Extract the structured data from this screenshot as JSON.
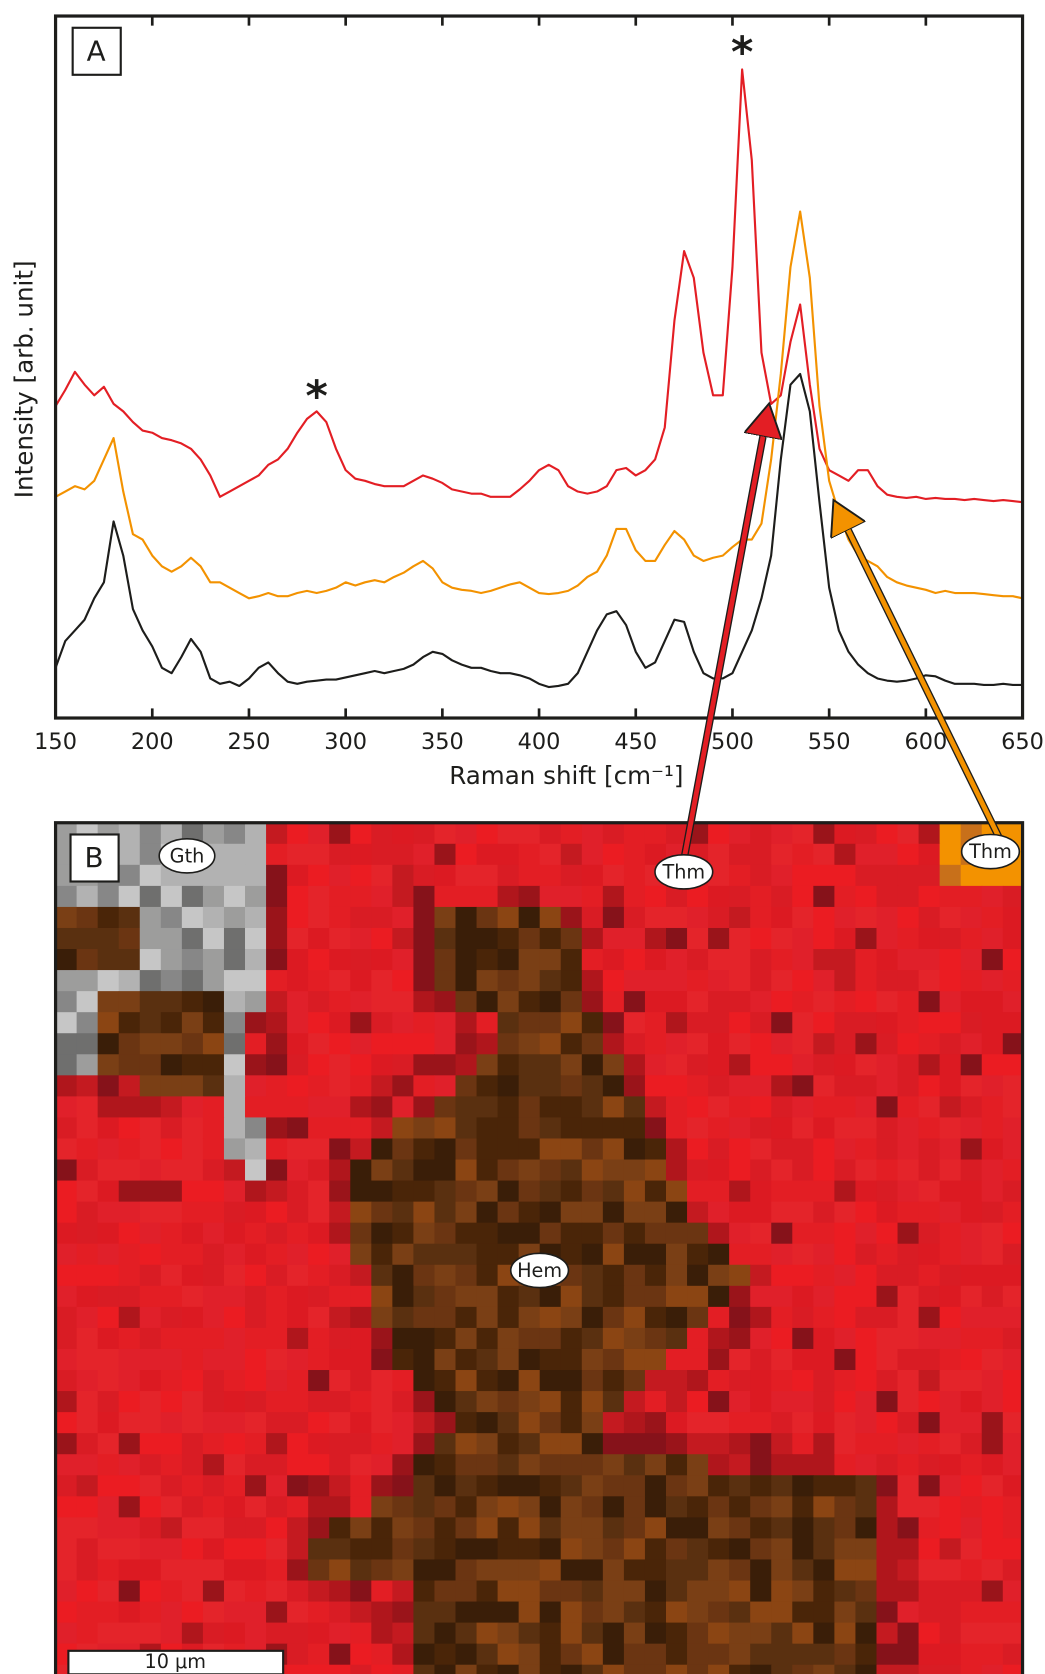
{
  "chart_data": {
    "type": "line",
    "panel_label": "A",
    "xlabel": "Raman shift [cm⁻¹]",
    "ylabel": "Intensity [arb. unit]",
    "xlim": [
      150,
      650
    ],
    "ylim": [
      0,
      657
    ],
    "xticks": [
      150,
      200,
      250,
      300,
      350,
      400,
      450,
      500,
      550,
      600,
      650
    ],
    "x": [
      150,
      155,
      160,
      165,
      170,
      175,
      180,
      185,
      190,
      195,
      200,
      205,
      210,
      215,
      220,
      225,
      230,
      235,
      240,
      245,
      250,
      255,
      260,
      265,
      270,
      275,
      280,
      285,
      290,
      295,
      300,
      305,
      310,
      315,
      320,
      325,
      330,
      335,
      340,
      345,
      350,
      355,
      360,
      365,
      370,
      375,
      380,
      385,
      390,
      395,
      400,
      405,
      410,
      415,
      420,
      425,
      430,
      435,
      440,
      445,
      450,
      455,
      460,
      465,
      470,
      475,
      480,
      485,
      490,
      495,
      500,
      505,
      510,
      515,
      520,
      525,
      530,
      535,
      540,
      545,
      550,
      555,
      560,
      565,
      570,
      575,
      580,
      585,
      590,
      595,
      600,
      605,
      610,
      615,
      620,
      625,
      630,
      635,
      640,
      645,
      650
    ],
    "series": [
      {
        "color": "#e31e24",
        "values": [
          292,
          307,
          324,
          312,
          302,
          310,
          294,
          287,
          277,
          269,
          267,
          262,
          260,
          257,
          252,
          242,
          227,
          207,
          212,
          217,
          222,
          227,
          237,
          242,
          252,
          267,
          280,
          287,
          277,
          252,
          232,
          224,
          222,
          219,
          217,
          217,
          217,
          222,
          227,
          224,
          220,
          214,
          212,
          210,
          210,
          207,
          207,
          207,
          214,
          222,
          232,
          237,
          232,
          217,
          212,
          210,
          212,
          217,
          232,
          234,
          227,
          232,
          242,
          272,
          372,
          437,
          412,
          342,
          302,
          302,
          422,
          607,
          522,
          342,
          294,
          302,
          352,
          387,
          312,
          252,
          232,
          227,
          222,
          232,
          232,
          217,
          209,
          207,
          206,
          207,
          205,
          206,
          205,
          205,
          204,
          205,
          204,
          203,
          204,
          203,
          202
        ]
      },
      {
        "color": "#f39200",
        "values": [
          207,
          212,
          217,
          214,
          222,
          242,
          262,
          212,
          172,
          167,
          152,
          142,
          137,
          142,
          150,
          142,
          127,
          127,
          122,
          117,
          112,
          114,
          117,
          114,
          114,
          117,
          119,
          117,
          119,
          122,
          127,
          124,
          127,
          129,
          127,
          132,
          136,
          142,
          147,
          140,
          127,
          122,
          120,
          119,
          117,
          119,
          122,
          125,
          127,
          122,
          117,
          116,
          117,
          119,
          124,
          132,
          137,
          152,
          177,
          177,
          157,
          147,
          147,
          162,
          175,
          167,
          152,
          147,
          150,
          152,
          160,
          167,
          167,
          182,
          242,
          322,
          422,
          474,
          412,
          292,
          222,
          192,
          167,
          152,
          147,
          142,
          132,
          127,
          124,
          122,
          120,
          117,
          119,
          117,
          117,
          117,
          116,
          115,
          114,
          114,
          112
        ]
      },
      {
        "color": "#1d1d1b",
        "values": [
          47,
          72,
          82,
          92,
          112,
          127,
          184,
          152,
          102,
          82,
          67,
          47,
          42,
          57,
          74,
          62,
          37,
          32,
          34,
          30,
          37,
          47,
          52,
          42,
          34,
          32,
          34,
          35,
          36,
          36,
          38,
          40,
          42,
          44,
          42,
          44,
          46,
          50,
          57,
          62,
          60,
          54,
          50,
          47,
          47,
          44,
          42,
          42,
          40,
          37,
          32,
          29,
          30,
          32,
          42,
          62,
          82,
          97,
          100,
          87,
          62,
          47,
          52,
          72,
          92,
          90,
          62,
          42,
          37,
          37,
          42,
          62,
          82,
          112,
          152,
          242,
          312,
          322,
          287,
          202,
          122,
          82,
          62,
          50,
          42,
          37,
          35,
          34,
          35,
          37,
          40,
          39,
          35,
          32,
          32,
          32,
          31,
          31,
          32,
          31,
          31
        ]
      }
    ],
    "annotations": [
      {
        "text": "*",
        "x": 285,
        "y": 310,
        "color": "#e31e24"
      },
      {
        "text": "*",
        "x": 505,
        "y": 632,
        "color": "#e31e24"
      }
    ]
  },
  "map": {
    "panel_label": "B",
    "labels": [
      "Gth",
      "Thm",
      "Thm",
      "Hem"
    ],
    "scale_bar": "10 μm"
  }
}
